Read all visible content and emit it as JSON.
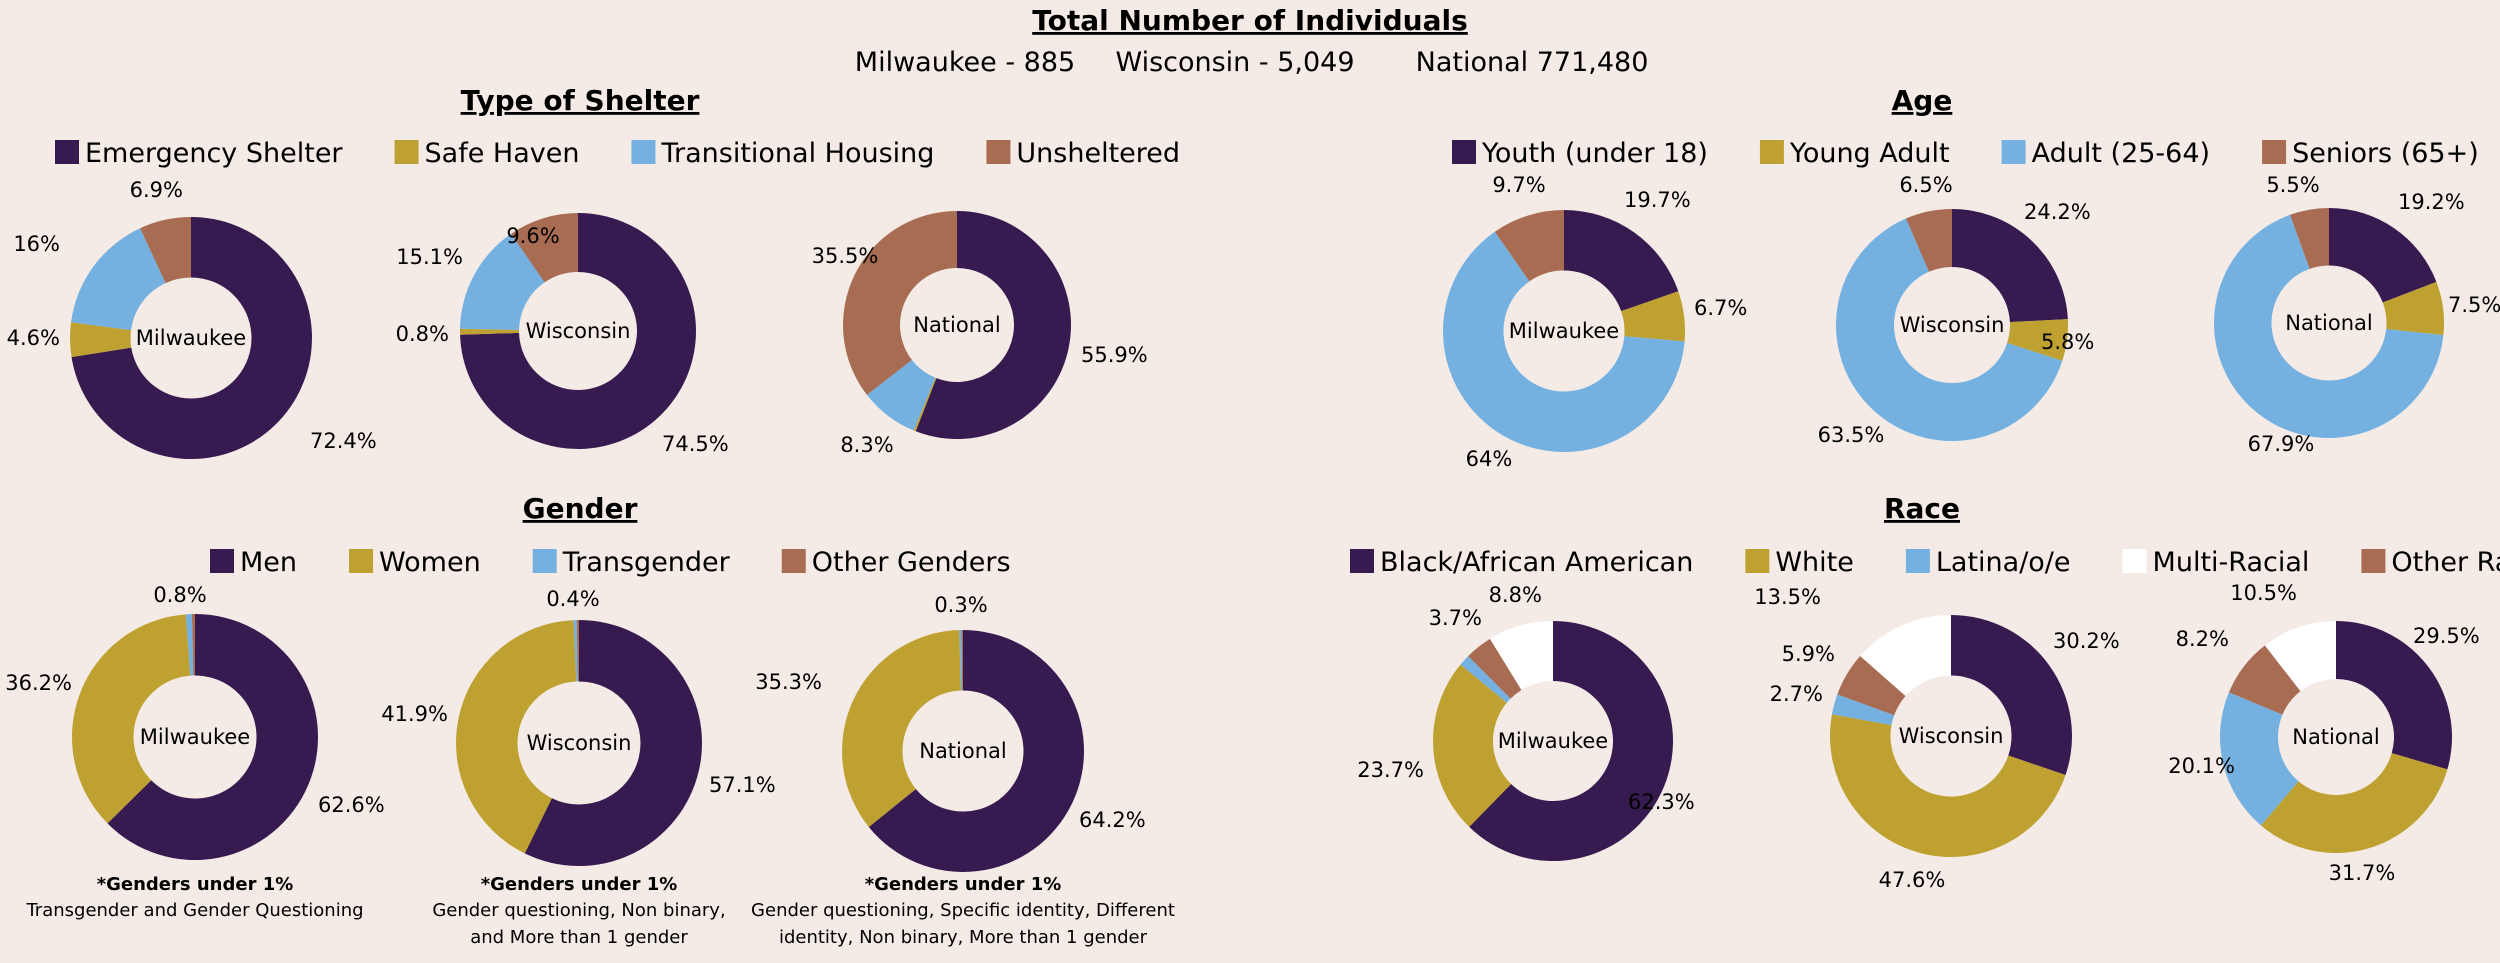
{
  "header": {
    "title": "Total Number of Individuals",
    "milwaukee": "Milwaukee - 885",
    "wisconsin": "Wisconsin - 5,049",
    "national": "National 771,480"
  },
  "colors": {
    "purple": "#371a50",
    "gold": "#bfa131",
    "blue": "#74b1e1",
    "brown": "#a76c52",
    "white": "#ffffff",
    "background": "#f5ebe6"
  },
  "chart_data": [
    {
      "type": "pie",
      "variant": "donut",
      "title": "Type of Shelter",
      "legend": [
        {
          "label": "Emergency Shelter",
          "color": "#371a50"
        },
        {
          "label": "Safe Haven",
          "color": "#bfa131"
        },
        {
          "label": "Transitional Housing",
          "color": "#74b1e1"
        },
        {
          "label": "Unsheltered",
          "color": "#a76c52"
        }
      ],
      "donuts": [
        {
          "name": "Milwaukee",
          "values": [
            72.4,
            4.6,
            16,
            6.9
          ],
          "labels": [
            "72.4%",
            "4.6%",
            "16%",
            "6.9%"
          ]
        },
        {
          "name": "Wisconsin",
          "values": [
            74.5,
            0.8,
            15.1,
            9.6
          ],
          "labels": [
            "74.5%",
            "0.8%",
            "15.1%",
            "9.6%"
          ]
        },
        {
          "name": "National",
          "values": [
            55.9,
            0.3,
            8.3,
            35.5
          ],
          "labels": [
            "55.9%",
            "",
            "8.3%",
            "35.5%"
          ]
        }
      ],
      "notes": []
    },
    {
      "type": "pie",
      "variant": "donut",
      "title": "Age",
      "legend": [
        {
          "label": "Youth (under 18)",
          "color": "#371a50"
        },
        {
          "label": "Young Adult",
          "color": "#bfa131"
        },
        {
          "label": "Adult (25-64)",
          "color": "#74b1e1"
        },
        {
          "label": "Seniors (65+)",
          "color": "#a76c52"
        }
      ],
      "donuts": [
        {
          "name": "Milwaukee",
          "values": [
            19.7,
            6.7,
            64,
            9.7
          ],
          "labels": [
            "19.7%",
            "6.7%",
            "64%",
            "9.7%"
          ]
        },
        {
          "name": "Wisconsin",
          "values": [
            24.2,
            5.8,
            63.5,
            6.5
          ],
          "labels": [
            "24.2%",
            "5.8%",
            "63.5%",
            "6.5%"
          ]
        },
        {
          "name": "National",
          "values": [
            19.2,
            7.5,
            67.9,
            5.5
          ],
          "labels": [
            "19.2%",
            "7.5%",
            "67.9%",
            "5.5%"
          ]
        }
      ],
      "notes": []
    },
    {
      "type": "pie",
      "variant": "donut",
      "title": "Gender",
      "legend": [
        {
          "label": "Men",
          "color": "#371a50"
        },
        {
          "label": "Women",
          "color": "#bfa131"
        },
        {
          "label": "Transgender",
          "color": "#74b1e1"
        },
        {
          "label": "Other Genders",
          "color": "#a76c52"
        }
      ],
      "donuts": [
        {
          "name": "Milwaukee",
          "values": [
            62.6,
            36.2,
            0.8,
            0.4
          ],
          "labels": [
            "62.6%",
            "36.2%",
            "0.8%",
            ""
          ]
        },
        {
          "name": "Wisconsin",
          "values": [
            57.1,
            41.9,
            0.4,
            0.3
          ],
          "labels": [
            "57.1%",
            "41.9%",
            "0.4%",
            ""
          ]
        },
        {
          "name": "National",
          "values": [
            64.2,
            35.3,
            0.3,
            0.2
          ],
          "labels": [
            "64.2%",
            "35.3%",
            "0.3%",
            ""
          ]
        }
      ],
      "notes": [
        {
          "bold": "*Genders under 1%",
          "lines": [
            "Transgender and Gender Questioning"
          ]
        },
        {
          "bold": "*Genders under 1%",
          "lines": [
            "Gender questioning, Non binary,",
            "and More than 1 gender"
          ]
        },
        {
          "bold": "*Genders under 1%",
          "lines": [
            "Gender questioning, Specific identity, Different",
            "identity, Non binary, More than 1 gender"
          ]
        }
      ]
    },
    {
      "type": "pie",
      "variant": "donut",
      "title": "Race",
      "legend": [
        {
          "label": "Black/African American",
          "color": "#371a50"
        },
        {
          "label": "White",
          "color": "#bfa131"
        },
        {
          "label": "Latina/o/e",
          "color": "#74b1e1"
        },
        {
          "label": "Multi-Racial",
          "color": "#ffffff"
        },
        {
          "label": "Other Race",
          "color": "#a76c52"
        }
      ],
      "donuts": [
        {
          "name": "Milwaukee",
          "values": [
            62.3,
            23.7,
            1.5,
            8.8,
            3.7
          ],
          "slice_order": [
            0,
            1,
            2,
            4,
            3
          ],
          "labels": [
            "62.3%",
            "23.7%",
            "",
            "8.8%",
            "3.7%"
          ]
        },
        {
          "name": "Wisconsin",
          "values": [
            30.2,
            47.6,
            2.7,
            13.5,
            5.9
          ],
          "slice_order": [
            0,
            1,
            2,
            4,
            3
          ],
          "labels": [
            "30.2%",
            "47.6%",
            "2.7%",
            "13.5%",
            "5.9%"
          ]
        },
        {
          "name": "National",
          "values": [
            29.5,
            31.7,
            20.1,
            10.5,
            8.2
          ],
          "slice_order": [
            0,
            1,
            2,
            4,
            3
          ],
          "labels": [
            "29.5%",
            "31.7%",
            "20.1%",
            "10.5%",
            "8.2%"
          ]
        }
      ],
      "notes": []
    }
  ]
}
